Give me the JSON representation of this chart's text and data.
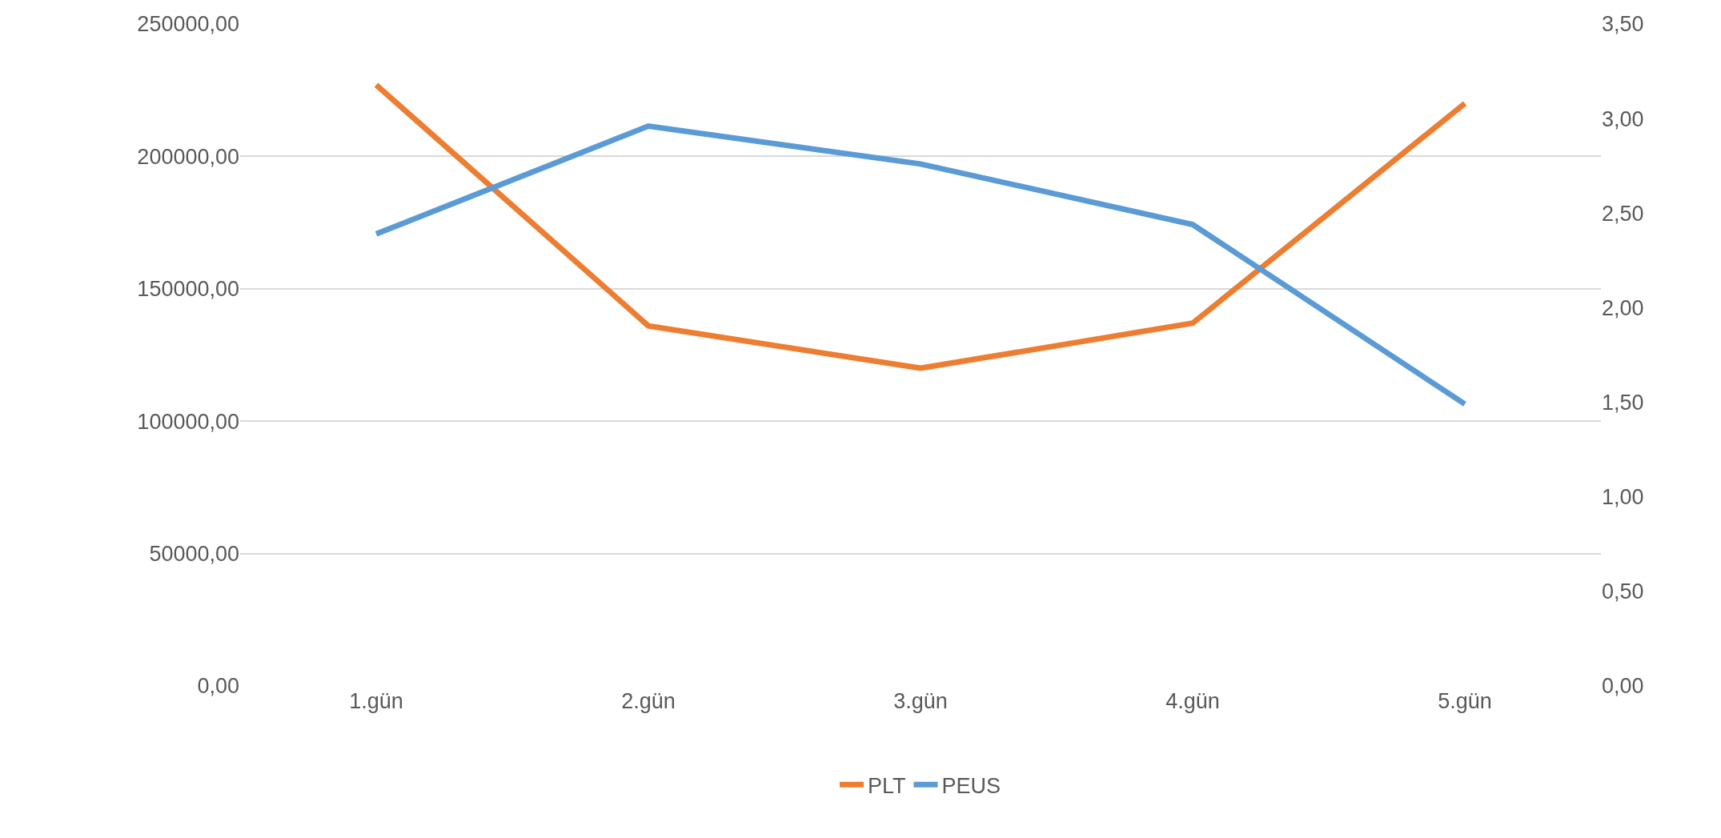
{
  "chart_data": {
    "type": "line",
    "categories": [
      "1.gün",
      "2.gün",
      "3.gün",
      "4.gün",
      "5.gün"
    ],
    "series": [
      {
        "name": "PLT",
        "color": "#ed7d31",
        "values": [
          227000,
          136000,
          120000,
          137000,
          220000
        ]
      },
      {
        "name": "PEUS",
        "color": "#5b9bd5",
        "axis": "y2",
        "values": [
          2.39,
          2.96,
          2.76,
          2.44,
          1.49
        ]
      }
    ],
    "ylim": [
      0,
      250000
    ],
    "yticks": [
      {
        "value": 0,
        "label": "0,00"
      },
      {
        "value": 50000,
        "label": "50000,00"
      },
      {
        "value": 100000,
        "label": "100000,00"
      },
      {
        "value": 150000,
        "label": "150000,00"
      },
      {
        "value": 200000,
        "label": "200000,00"
      },
      {
        "value": 250000,
        "label": "250000,00"
      }
    ],
    "y2lim": [
      0,
      3.5
    ],
    "y2ticks": [
      {
        "value": 0,
        "label": "0,00"
      },
      {
        "value": 0.5,
        "label": "0,50"
      },
      {
        "value": 1,
        "label": "1,00"
      },
      {
        "value": 1.5,
        "label": "1,50"
      },
      {
        "value": 2,
        "label": "2,00"
      },
      {
        "value": 2.5,
        "label": "2,50"
      },
      {
        "value": 3,
        "label": "3,00"
      },
      {
        "value": 3.5,
        "label": "3,50"
      }
    ],
    "grid": "y",
    "legend": "bottom",
    "marker": "none",
    "line_style": "solid"
  }
}
